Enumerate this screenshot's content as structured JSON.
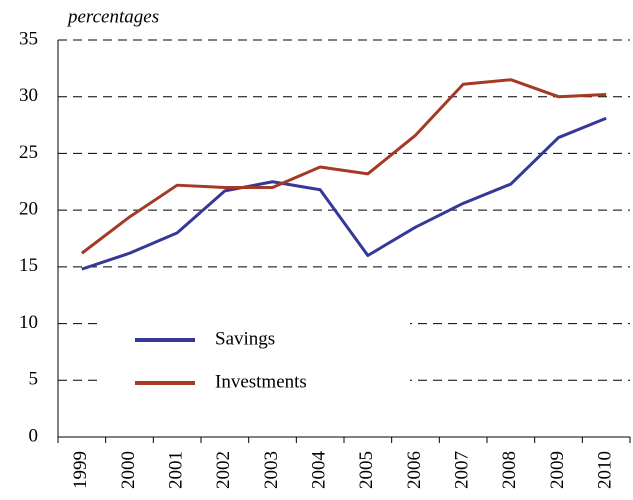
{
  "chart_data": {
    "type": "line",
    "subtitle": "percentages",
    "categories": [
      "1999",
      "2000",
      "2001",
      "2002",
      "2003",
      "2004",
      "2005",
      "2006",
      "2007",
      "2008",
      "2009",
      "2010"
    ],
    "series": [
      {
        "name": "Savings",
        "color": "#353896",
        "values": [
          14.8,
          16.2,
          18.0,
          21.7,
          22.5,
          21.8,
          16.0,
          18.5,
          20.6,
          22.3,
          26.4,
          28.1
        ]
      },
      {
        "name": "Investments",
        "color": "#a43a26",
        "values": [
          16.2,
          19.4,
          22.2,
          22.0,
          22.0,
          23.8,
          23.2,
          26.6,
          31.1,
          31.5,
          30.0,
          30.2
        ]
      }
    ],
    "ylim": [
      0,
      35
    ],
    "yticks": [
      0,
      5,
      10,
      15,
      20,
      25,
      30,
      35
    ],
    "grid": true
  }
}
